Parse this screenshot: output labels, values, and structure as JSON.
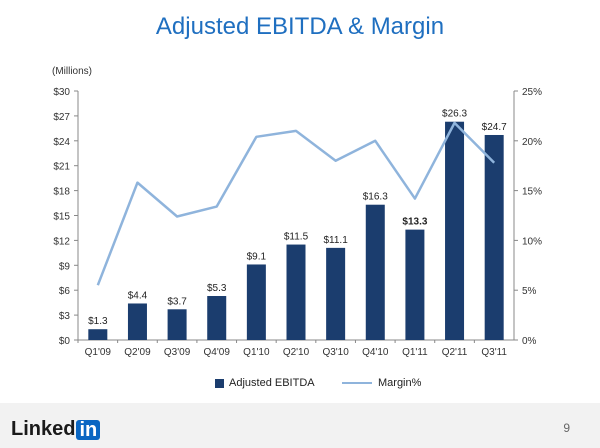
{
  "chart_data": {
    "type": "bar",
    "title": "Adjusted EBITDA & Margin",
    "unit_label": "(Millions)",
    "categories": [
      "Q1'09",
      "Q2'09",
      "Q3'09",
      "Q4'09",
      "Q1'10",
      "Q2'10",
      "Q3'10",
      "Q4'10",
      "Q1'11",
      "Q2'11",
      "Q3'11"
    ],
    "series": [
      {
        "name": "Adjusted EBITDA",
        "type": "bar",
        "axis": "left",
        "values": [
          1.3,
          4.4,
          3.7,
          5.3,
          9.1,
          11.5,
          11.1,
          16.3,
          13.3,
          26.3,
          24.7
        ],
        "labels": [
          "$1.3",
          "$4.4",
          "$3.7",
          "$5.3",
          "$9.1",
          "$11.5",
          "$11.1",
          "$16.3",
          "$13.3",
          "$26.3",
          "$24.7"
        ],
        "color": "#1b3d6e"
      },
      {
        "name": "Margin%",
        "type": "line",
        "axis": "right",
        "values": [
          5.5,
          15.8,
          12.4,
          13.4,
          20.4,
          21.0,
          18.0,
          20.0,
          14.2,
          21.8,
          17.8
        ],
        "color": "#8fb4dc"
      }
    ],
    "y_left": {
      "ylim": [
        0,
        30
      ],
      "ticks": [
        "$0",
        "$3",
        "$6",
        "$9",
        "$12",
        "$15",
        "$18",
        "$21",
        "$24",
        "$27",
        "$30"
      ]
    },
    "y_right": {
      "ylim": [
        0,
        25
      ],
      "ticks": [
        "0%",
        "5%",
        "10%",
        "15%",
        "20%",
        "25%"
      ]
    },
    "grid": false,
    "legend_position": "bottom"
  },
  "footer": {
    "logo_text": "Linked",
    "logo_badge": "in",
    "page_number": "9"
  }
}
